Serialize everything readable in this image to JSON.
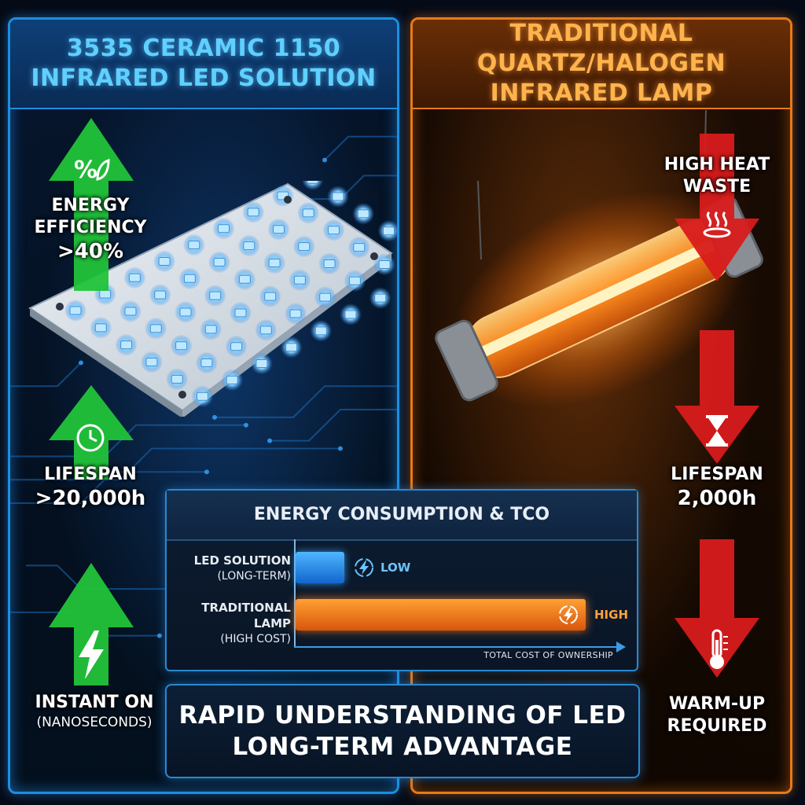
{
  "left_panel": {
    "title_line1": "3535 CERAMIC 1150",
    "title_line2": "INFRARED LED SOLUTION",
    "features": [
      {
        "line1": "ENERGY",
        "line2": "EFFICIENCY",
        "line3": ">40%",
        "icon": "percent-leaf-icon"
      },
      {
        "line1": "LIFESPAN",
        "line2": ">20,000h",
        "icon": "clock-icon"
      },
      {
        "line1": "INSTANT ON",
        "line2": "(NANOSECONDS)",
        "icon": "lightning-bolt-icon"
      }
    ]
  },
  "right_panel": {
    "title_line1": "TRADITIONAL QUARTZ/HALOGEN",
    "title_line2": "INFRARED LAMP",
    "features": [
      {
        "line1": "HIGH HEAT",
        "line2": "WASTE",
        "icon": "heat-waves-icon"
      },
      {
        "line1": "LIFESPAN",
        "line2": "2,000h",
        "icon": "hourglass-icon"
      },
      {
        "line1": "WARM-UP",
        "line2": "REQUIRED",
        "icon": "thermometer-icon"
      }
    ]
  },
  "tco_chart": {
    "title": "ENERGY CONSUMPTION & TCO",
    "x_axis_label": "TOTAL COST OF OWNERSHIP",
    "rows": [
      {
        "label": "LED SOLUTION",
        "sublabel": "(LONG-TERM)",
        "level": "LOW",
        "relative_value": 0.15,
        "color": "#2a8ff0"
      },
      {
        "label": "TRADITIONAL LAMP",
        "sublabel": "(HIGH COST)",
        "level": "HIGH",
        "relative_value": 0.9,
        "color": "#f07a1a"
      }
    ]
  },
  "footer": {
    "line1": "RAPID UNDERSTANDING OF LED",
    "line2": "LONG-TERM ADVANTAGE"
  },
  "colors": {
    "led_blue": "#1b8fe0",
    "lamp_orange": "#e87a18",
    "good_green": "#22c33a",
    "bad_red": "#d81b1b"
  }
}
